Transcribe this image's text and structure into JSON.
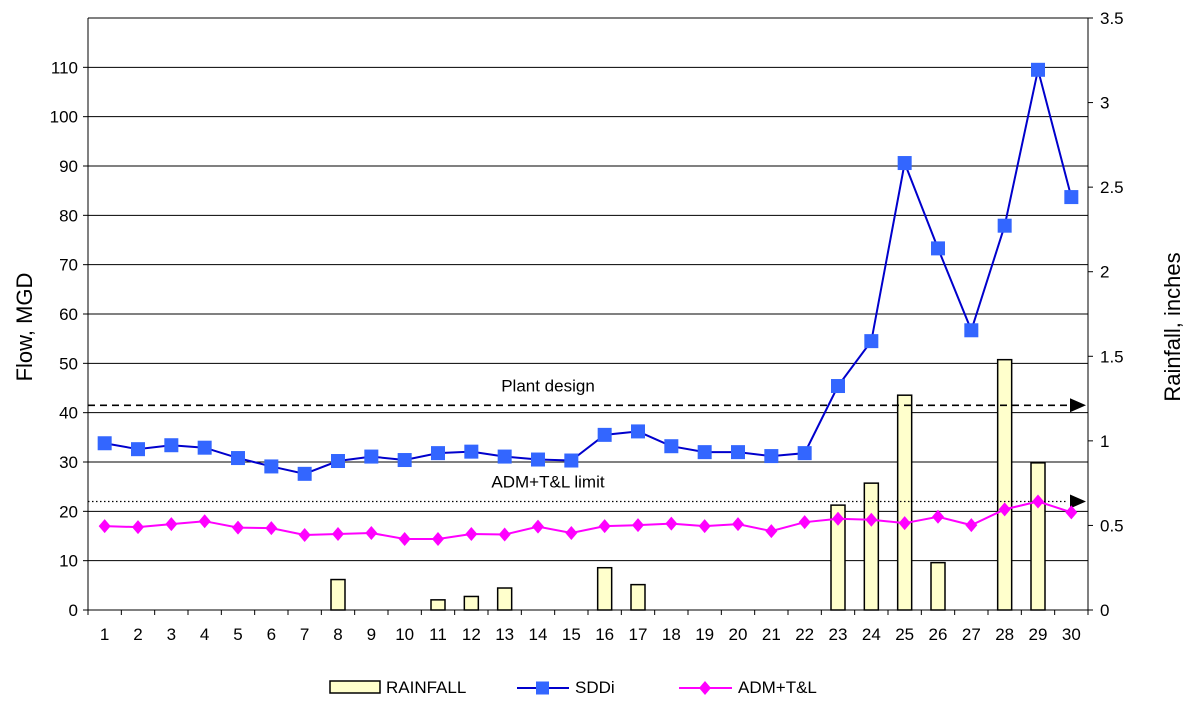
{
  "chart_data": {
    "type": "bar+line",
    "title": "",
    "xlabel": "",
    "ylabel_left": "Flow, MGD",
    "ylabel_right": "Rainfall, inches",
    "x": [
      1,
      2,
      3,
      4,
      5,
      6,
      7,
      8,
      9,
      10,
      11,
      12,
      13,
      14,
      15,
      16,
      17,
      18,
      19,
      20,
      21,
      22,
      23,
      24,
      25,
      26,
      27,
      28,
      29,
      30
    ],
    "y_left": {
      "min": 0,
      "max": 120,
      "ticks": [
        0,
        10,
        20,
        30,
        40,
        50,
        60,
        70,
        80,
        90,
        100,
        110
      ]
    },
    "y_right": {
      "min": 0,
      "max": 3.5,
      "ticks": [
        "0",
        "0.5",
        "1",
        "1.5",
        "2",
        "2.5",
        "3",
        "3.5"
      ]
    },
    "grid": "horizontal",
    "legend_position": "bottom",
    "series": [
      {
        "name": "RAINFALL",
        "type": "bar",
        "axis": "right",
        "color": "#FFFFCC",
        "values": [
          0,
          0,
          0,
          0,
          0,
          0,
          0,
          0.18,
          0,
          0,
          0.06,
          0.08,
          0.13,
          0,
          0,
          0.25,
          0.15,
          0,
          0,
          0,
          0,
          0,
          0.62,
          0.75,
          1.27,
          0.28,
          0,
          1.48,
          0.87,
          0
        ]
      },
      {
        "name": "SDDi",
        "type": "line",
        "axis": "left",
        "color": "#0000CC",
        "marker_color": "#3366FF",
        "marker": "square",
        "values": [
          33.8,
          32.6,
          33.4,
          32.9,
          30.8,
          29.1,
          27.6,
          30.2,
          31.1,
          30.4,
          31.8,
          32.1,
          31.1,
          30.5,
          30.3,
          35.5,
          36.2,
          33.2,
          32.0,
          32.0,
          31.2,
          31.8,
          45.4,
          54.5,
          90.6,
          73.3,
          56.7,
          77.9,
          109.5,
          83.7
        ]
      },
      {
        "name": "ADM+T&L",
        "type": "line",
        "axis": "left",
        "color": "#FF00FF",
        "marker": "diamond",
        "values": [
          17.0,
          16.8,
          17.4,
          18.0,
          16.7,
          16.6,
          15.2,
          15.4,
          15.6,
          14.4,
          14.4,
          15.4,
          15.3,
          16.9,
          15.6,
          17.0,
          17.2,
          17.5,
          17.0,
          17.4,
          16.0,
          17.8,
          18.5,
          18.3,
          17.6,
          18.9,
          17.2,
          20.4,
          22.0,
          19.8
        ]
      }
    ],
    "reference_lines": [
      {
        "label": "Plant design",
        "value": 41.5,
        "style": "dashed"
      },
      {
        "label": "ADM+T&L limit",
        "value": 22.0,
        "style": "dotted"
      }
    ]
  }
}
